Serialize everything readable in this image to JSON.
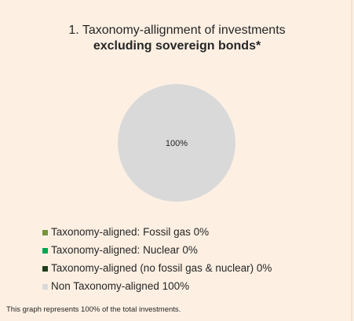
{
  "chart_data": {
    "type": "pie",
    "title": "1. Taxonomy-allignment of investments",
    "subtitle": "excluding sovereign bonds*",
    "slices": [
      {
        "label": "Taxonomy-aligned: Fossil gas 0%",
        "value": 0,
        "color": "#77933c"
      },
      {
        "label": "Taxonomy-aligned: Nuclear 0%",
        "value": 0,
        "color": "#00a651"
      },
      {
        "label": "Taxonomy-aligned (no fossil gas & nuclear) 0%",
        "value": 0,
        "color": "#1e3d1a"
      },
      {
        "label": "Non Taxonomy-aligned 100%",
        "value": 100,
        "color": "#d9d9d9"
      }
    ],
    "data_label": "100%",
    "legend_position": "bottom-left"
  },
  "footnote": "This graph represents 100% of the total investments."
}
